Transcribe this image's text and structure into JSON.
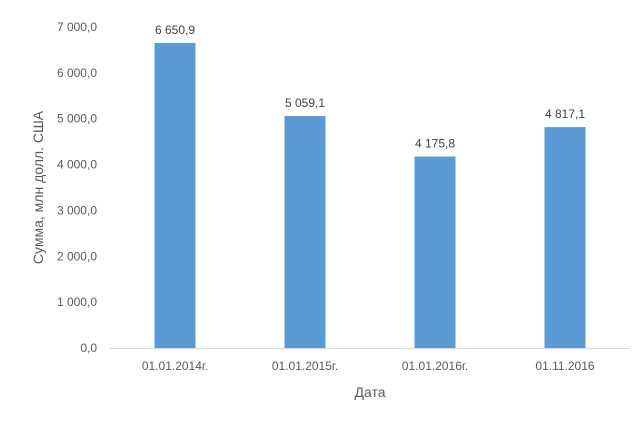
{
  "chart_data": {
    "type": "bar",
    "categories": [
      "01.01.2014г.",
      "01.01.2015г.",
      "01.01.2016г.",
      "01.11.2016"
    ],
    "values": [
      6650.9,
      5059.1,
      4175.8,
      4817.1
    ],
    "value_labels": [
      "6 650,9",
      "5 059,1",
      "4 175,8",
      "4 817,1"
    ],
    "xlabel": "Дата",
    "ylabel": "Сумма, млн долл. США",
    "ylim": [
      0,
      7000
    ],
    "yticks": [
      0,
      1000,
      2000,
      3000,
      4000,
      5000,
      6000,
      7000
    ],
    "ytick_labels": [
      "0,0",
      "1 000,0",
      "2 000,0",
      "3 000,0",
      "4 000,0",
      "5 000,0",
      "6 000,0",
      "7 000,0"
    ],
    "grid": false,
    "bar_color": "#5B9BD5",
    "axis_color": "#D9D9D9",
    "text_color": "#595959"
  }
}
